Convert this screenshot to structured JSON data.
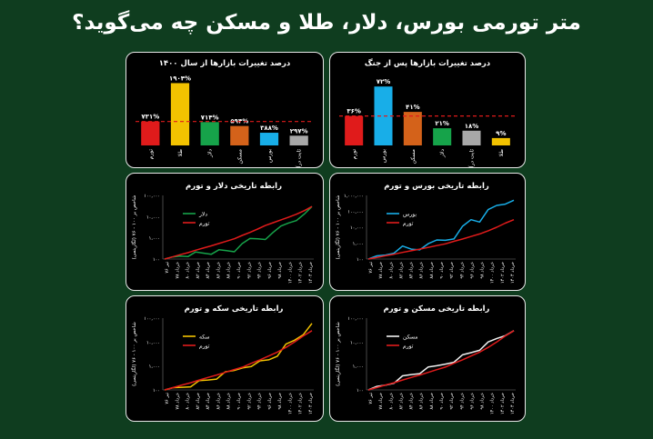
{
  "page_title": "متر تورمی بورس، دلار، طلا و مسکن چه می‌گوید؟",
  "colors": {
    "background": "#0f3d1f",
    "panel": "#000000",
    "inflation": "#e01b1b"
  },
  "chart_data": [
    {
      "id": "bars-war",
      "type": "bar",
      "title": "درصد تغییرات بازارها پس از جنگ",
      "categories": [
        "تورم",
        "بورس",
        "مسکن",
        "دلار",
        "ثابت درآمد",
        "طلا"
      ],
      "values": [
        36,
        72,
        41,
        21,
        18,
        9
      ],
      "value_labels": [
        "۳۶%",
        "۷۲%",
        "۴۱%",
        "۲۱%",
        "۱۸%",
        "۹%"
      ],
      "colors": [
        "#e01b1b",
        "#18aee8",
        "#d4621a",
        "#16a34a",
        "#a8a8a8",
        "#f2c200"
      ],
      "reference_line": 36,
      "ylim": [
        0,
        80
      ]
    },
    {
      "id": "bars-1400",
      "type": "bar",
      "title": "درصد تغییرات بازارها از سال ۱۴۰۰",
      "categories": [
        "تورم",
        "طلا",
        "دلار",
        "مسکن",
        "بورس",
        "ثابت درآمد"
      ],
      "values": [
        731,
        1904,
        714,
        594,
        388,
        297
      ],
      "value_labels": [
        "۷۳۱%",
        "۱۹۰۴%",
        "۷۱۴%",
        "۵۹۴%",
        "۳۸۸%",
        "۲۹۷%"
      ],
      "colors": [
        "#e01b1b",
        "#f2c200",
        "#16a34a",
        "#d4621a",
        "#18aee8",
        "#a8a8a8"
      ],
      "reference_line": 731,
      "ylim": [
        0,
        2000
      ]
    },
    {
      "id": "line-bourse",
      "type": "line",
      "title": "رابطه تاریخی بورس و تورم",
      "ylabel": "شاخص بر ۱۰۰ - ۷۶ (لگاریتمی)",
      "yticks": [
        "۱۰۰",
        "۱,۰۰۰",
        "۱۰,۰۰۰",
        "۱۰۰,۰۰۰",
        "۱,۰۰۰,۰۰۰"
      ],
      "xticks": [
        "تیر ۷۶",
        "خرداد ۷۸",
        "خرداد ۸۰",
        "خرداد ۸۲",
        "خرداد ۸۴",
        "خرداد ۸۶",
        "خرداد ۸۸",
        "خرداد ۹۰",
        "خرداد ۹۲",
        "خرداد ۹۴",
        "خرداد ۹۶",
        "خرداد ۹۸",
        "خرداد ۱۴۰۰",
        "خرداد ۱۴۰۲",
        "خرداد ۱۴۰۴"
      ],
      "series": [
        {
          "name": "بورس",
          "color": "#18aee8",
          "values": [
            100,
            140,
            200,
            330,
            520,
            420,
            480,
            650,
            1400,
            1700,
            2600,
            9000,
            30000,
            27000,
            90000,
            210000,
            320000,
            500000
          ]
        },
        {
          "name": "تورم",
          "color": "#e01b1b",
          "values": [
            100,
            125,
            160,
            200,
            260,
            330,
            420,
            540,
            700,
            900,
            1300,
            1800,
            2600,
            3800,
            6000,
            10000,
            18000,
            30000
          ]
        }
      ],
      "ylim": [
        100,
        1000000
      ],
      "log_scale": true
    },
    {
      "id": "line-dollar",
      "type": "line",
      "title": "رابطه تاریخی دلار و تورم",
      "ylabel": "شاخص بر ۱۰۰ - ۷۶ (لگاریتمی)",
      "yticks": [
        "۱۰۰",
        "۱,۰۰۰",
        "۱۰,۰۰۰",
        "۱۰۰,۰۰۰"
      ],
      "xticks": [
        "تیر ۷۶",
        "خرداد ۷۸",
        "خرداد ۸۰",
        "خرداد ۸۲",
        "خرداد ۸۴",
        "خرداد ۸۶",
        "خرداد ۸۸",
        "خرداد ۹۰",
        "خرداد ۹۲",
        "خرداد ۹۴",
        "خرداد ۹۶",
        "خرداد ۹۸",
        "خرداد ۱۴۰۰",
        "خرداد ۱۴۰۲",
        "خرداد ۱۴۰۴"
      ],
      "series": [
        {
          "name": "دلار",
          "color": "#16a34a",
          "values": [
            100,
            115,
            150,
            170,
            180,
            190,
            200,
            210,
            230,
            240,
            700,
            780,
            900,
            1000,
            1400,
            3300,
            5500,
            8500,
            11000,
            30000
          ]
        },
        {
          "name": "تورم",
          "color": "#e01b1b",
          "values": [
            100,
            125,
            160,
            200,
            260,
            330,
            420,
            540,
            700,
            900,
            1300,
            1800,
            2600,
            3800,
            5200,
            7000,
            9500,
            13000,
            19000,
            30000
          ]
        }
      ],
      "ylim": [
        100,
        100000
      ],
      "log_scale": true
    },
    {
      "id": "line-maskan",
      "type": "line",
      "title": "رابطه تاریخی مسکن و تورم",
      "ylabel": "شاخص بر ۱۰۰ - ۷۶ (لگاریتمی)",
      "yticks": [
        "۱۰۰",
        "۱,۰۰۰",
        "۱۰,۰۰۰",
        "۱۰۰,۰۰۰"
      ],
      "xticks": [
        "تیر ۷۶",
        "خرداد ۷۸",
        "خرداد ۸۰",
        "خرداد ۸۲",
        "خرداد ۸۴",
        "خرداد ۸۶",
        "خرداد ۸۸",
        "خرداد ۹۰",
        "خرداد ۹۲",
        "خرداد ۹۴",
        "خرداد ۹۶",
        "خرداد ۹۸",
        "خرداد ۱۴۰۰",
        "خرداد ۱۴۰۲",
        "خرداد ۱۴۰۴"
      ],
      "series": [
        {
          "name": "مسکن",
          "color": "#f2f2f2",
          "values": [
            100,
            130,
            170,
            240,
            330,
            440,
            560,
            720,
            950,
            1300,
            1800,
            2500,
            3600,
            5300,
            8000,
            13000,
            20000,
            30000
          ]
        },
        {
          "name": "تورم",
          "color": "#e01b1b",
          "values": [
            100,
            125,
            160,
            200,
            260,
            330,
            420,
            540,
            700,
            900,
            1300,
            1800,
            2600,
            3800,
            6000,
            10000,
            18000,
            30000
          ]
        }
      ],
      "ylim": [
        100,
        100000
      ],
      "log_scale": true
    },
    {
      "id": "line-coin",
      "type": "line",
      "title": "رابطه تاریخی سکه و تورم",
      "ylabel": "شاخص بر ۱۰۰ - ۷۶ (لگاریتمی)",
      "yticks": [
        "۱۰۰",
        "۱,۰۰۰",
        "۱۰,۰۰۰",
        "۱۰۰,۰۰۰"
      ],
      "xticks": [
        "تیر ۷۶",
        "خرداد ۷۸",
        "خرداد ۸۰",
        "خرداد ۸۲",
        "خرداد ۸۴",
        "خرداد ۸۶",
        "خرداد ۸۸",
        "خرداد ۹۰",
        "خرداد ۹۲",
        "خرداد ۹۴",
        "خرداد ۹۶",
        "خرداد ۹۸",
        "خرداد ۱۴۰۰",
        "خرداد ۱۴۰۲",
        "خرداد ۱۴۰۴"
      ],
      "series": [
        {
          "name": "سکه",
          "color": "#f2c200",
          "values": [
            100,
            115,
            140,
            170,
            210,
            260,
            330,
            450,
            600,
            900,
            1200,
            1400,
            1800,
            3000,
            6500,
            11000,
            22000,
            60000
          ]
        },
        {
          "name": "تورم",
          "color": "#e01b1b",
          "values": [
            100,
            125,
            160,
            200,
            260,
            330,
            420,
            540,
            700,
            900,
            1300,
            1800,
            2600,
            3800,
            6000,
            10000,
            18000,
            30000
          ]
        }
      ],
      "ylim": [
        100,
        100000
      ],
      "log_scale": true
    }
  ]
}
